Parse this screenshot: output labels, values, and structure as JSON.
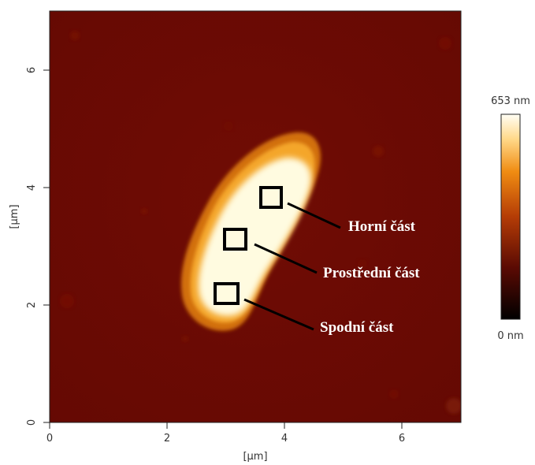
{
  "image": {
    "x_axis_label": "[µm]",
    "y_axis_label": "[µm]",
    "x_ticks": [
      "0",
      "2",
      "4",
      "6"
    ],
    "y_ticks": [
      "0",
      "2",
      "4",
      "6"
    ],
    "annotations": [
      {
        "label": "Horní část"
      },
      {
        "label": "Prostřední část"
      },
      {
        "label": "Spodní část"
      }
    ],
    "colorbar": {
      "max_label": "653 nm",
      "min_label": "0 nm"
    },
    "colors": {
      "background": "#6a0a03",
      "feature_edge": "#e28410",
      "feature_core": "#fffde6",
      "box_stroke": "#000000",
      "leader_line": "#000000"
    }
  }
}
